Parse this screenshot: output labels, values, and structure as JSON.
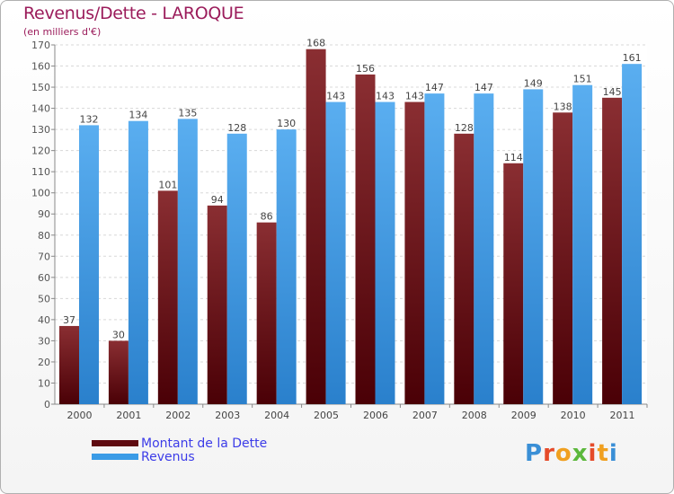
{
  "title": "Revenus/Dette - LAROQUE",
  "subtitle": "(en milliers d'€)",
  "colors": {
    "dette": "#7a1f24",
    "revenus": "#2f8fd8",
    "title": "#9b1c5b",
    "legend_text": "#3c3ce8"
  },
  "legend": {
    "dette_label": "Montant de la Dette",
    "revenus_label": "Revenus"
  },
  "logo": {
    "text": "Proxiti",
    "chars": [
      "P",
      "r",
      "o",
      "x",
      "i",
      "t",
      "i"
    ]
  },
  "chart_data": {
    "type": "bar",
    "title": "Revenus/Dette - LAROQUE",
    "ylabel": "(en milliers d'€)",
    "xlabel": "",
    "ylim": [
      0,
      170
    ],
    "ytick_step": 10,
    "grid": true,
    "legend_position": "bottom-left",
    "categories": [
      "2000",
      "2001",
      "2002",
      "2003",
      "2004",
      "2005",
      "2006",
      "2007",
      "2008",
      "2009",
      "2010",
      "2011"
    ],
    "series": [
      {
        "name": "Montant de la Dette",
        "values": [
          37,
          30,
          101,
          94,
          86,
          168,
          156,
          143,
          128,
          114,
          138,
          145
        ]
      },
      {
        "name": "Revenus",
        "values": [
          132,
          134,
          135,
          128,
          130,
          143,
          143,
          147,
          147,
          149,
          151,
          161
        ]
      }
    ]
  }
}
